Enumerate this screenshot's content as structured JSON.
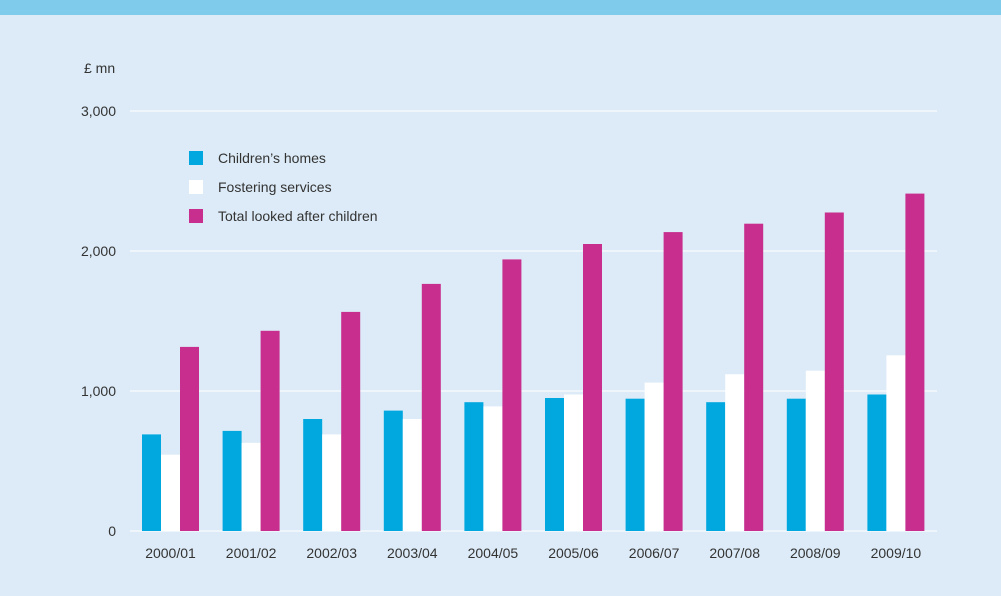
{
  "chart_data": {
    "type": "bar",
    "unit_label": "£ mn",
    "categories": [
      "2000/01",
      "2001/02",
      "2002/03",
      "2003/04",
      "2004/05",
      "2005/06",
      "2006/07",
      "2007/08",
      "2008/09",
      "2009/10"
    ],
    "y_ticks": [
      0,
      1000,
      2000,
      3000
    ],
    "y_tick_labels": [
      "0",
      "1,000",
      "2,000",
      "3,000"
    ],
    "ylim": [
      0,
      3000
    ],
    "grid": true,
    "legend_position": "top-left",
    "series": [
      {
        "name": "Children’s homes",
        "color": "#00a8df",
        "values": [
          690,
          715,
          800,
          860,
          920,
          950,
          945,
          920,
          945,
          975
        ]
      },
      {
        "name": "Fostering services",
        "color": "#ffffff",
        "values": [
          545,
          630,
          690,
          800,
          890,
          975,
          1060,
          1120,
          1145,
          1255
        ]
      },
      {
        "name": "Total looked after children",
        "color": "#c72e8e",
        "values": [
          1315,
          1430,
          1565,
          1765,
          1940,
          2050,
          2135,
          2195,
          2275,
          2410
        ]
      }
    ]
  }
}
